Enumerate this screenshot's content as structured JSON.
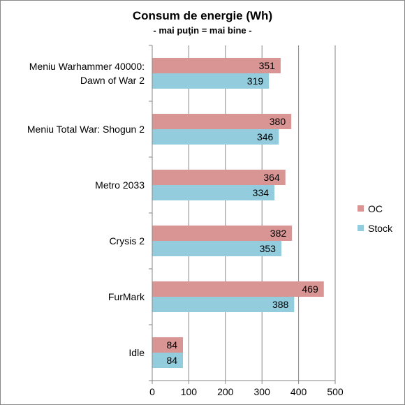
{
  "chart_data": {
    "type": "bar",
    "orientation": "horizontal",
    "title": "Consum de energie (Wh)",
    "subtitle": "- mai puţin = mai bine -",
    "categories": [
      "Meniu Warhammer 40000: Dawn of War 2",
      "Meniu Total War: Shogun 2",
      "Metro 2033",
      "Crysis 2",
      "FurMark",
      "Idle"
    ],
    "category_lines": [
      [
        "Meniu Warhammer 40000:",
        "Dawn of War 2"
      ],
      [
        "Meniu Total War: Shogun 2"
      ],
      [
        "Metro 2033"
      ],
      [
        "Crysis 2"
      ],
      [
        "FurMark"
      ],
      [
        "Idle"
      ]
    ],
    "series": [
      {
        "name": "OC",
        "color": "#d99594",
        "values": [
          351,
          380,
          364,
          382,
          469,
          84
        ]
      },
      {
        "name": "Stock",
        "color": "#93cddd",
        "values": [
          319,
          346,
          334,
          353,
          388,
          84
        ]
      }
    ],
    "xlim": [
      0,
      500
    ],
    "xticks": [
      0,
      100,
      200,
      300,
      400,
      500
    ],
    "grid": true,
    "legend_position": "right",
    "data_labels": true
  }
}
